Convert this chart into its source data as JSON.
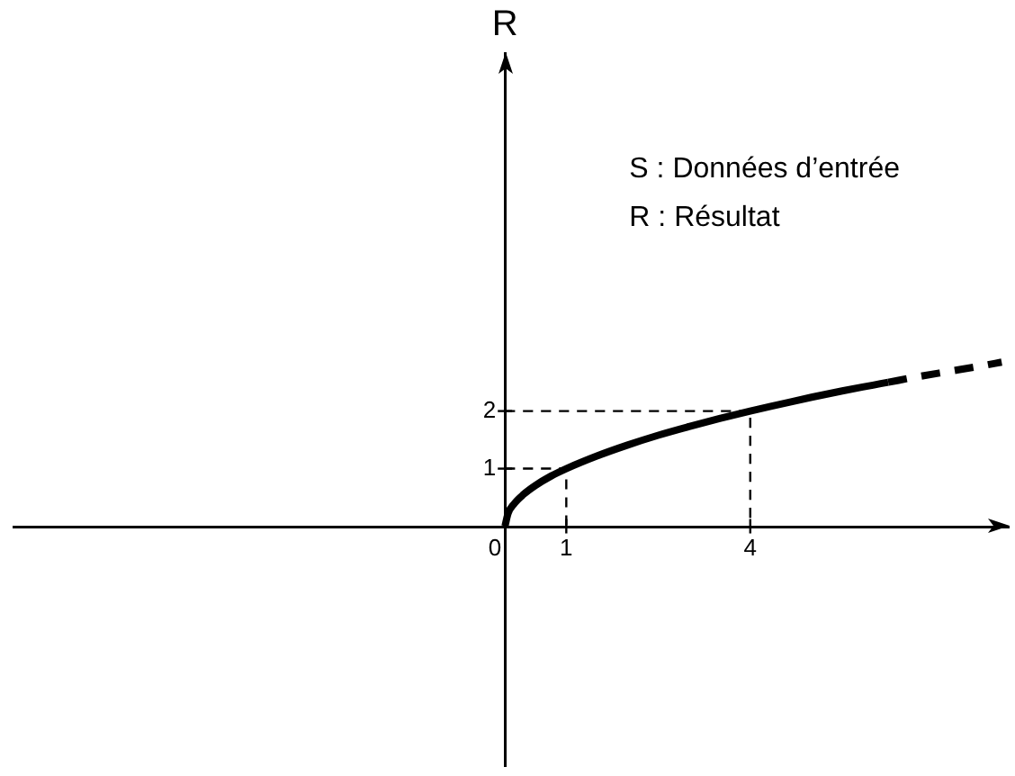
{
  "chart_data": {
    "type": "line",
    "ylabel": "R",
    "annotations": [
      "S : Données d’entrée",
      "R : Résultat"
    ],
    "xlim": [
      -8,
      8.2
    ],
    "ylim": [
      -4.15,
      8.2
    ],
    "xticks": [
      0,
      1,
      4
    ],
    "yticks": [
      1,
      2
    ],
    "grid": false,
    "legend": false,
    "series": [
      {
        "color": "#000000",
        "line_style": "solid",
        "x": [
          0,
          0.05,
          0.15,
          0.3,
          0.5,
          0.75,
          1,
          1.5,
          2,
          2.5,
          3,
          3.5,
          4,
          4.5,
          5,
          5.5,
          6,
          6.25
        ],
        "values": [
          0,
          0.22,
          0.39,
          0.55,
          0.71,
          0.87,
          1,
          1.22,
          1.41,
          1.58,
          1.73,
          1.87,
          2,
          2.12,
          2.24,
          2.35,
          2.45,
          2.5
        ]
      },
      {
        "color": "#000000",
        "line_style": "dashed",
        "x": [
          6.25,
          6.75,
          7.25,
          7.75,
          8.1
        ],
        "values": [
          2.5,
          2.6,
          2.69,
          2.78,
          2.85
        ]
      },
      {
        "color": "#000000",
        "line_style": "dashed",
        "x": [
          0,
          1,
          1
        ],
        "values": [
          1,
          1,
          0
        ]
      },
      {
        "color": "#000000",
        "line_style": "dashed",
        "x": [
          0,
          4,
          4
        ],
        "values": [
          2,
          2,
          0
        ]
      }
    ]
  }
}
